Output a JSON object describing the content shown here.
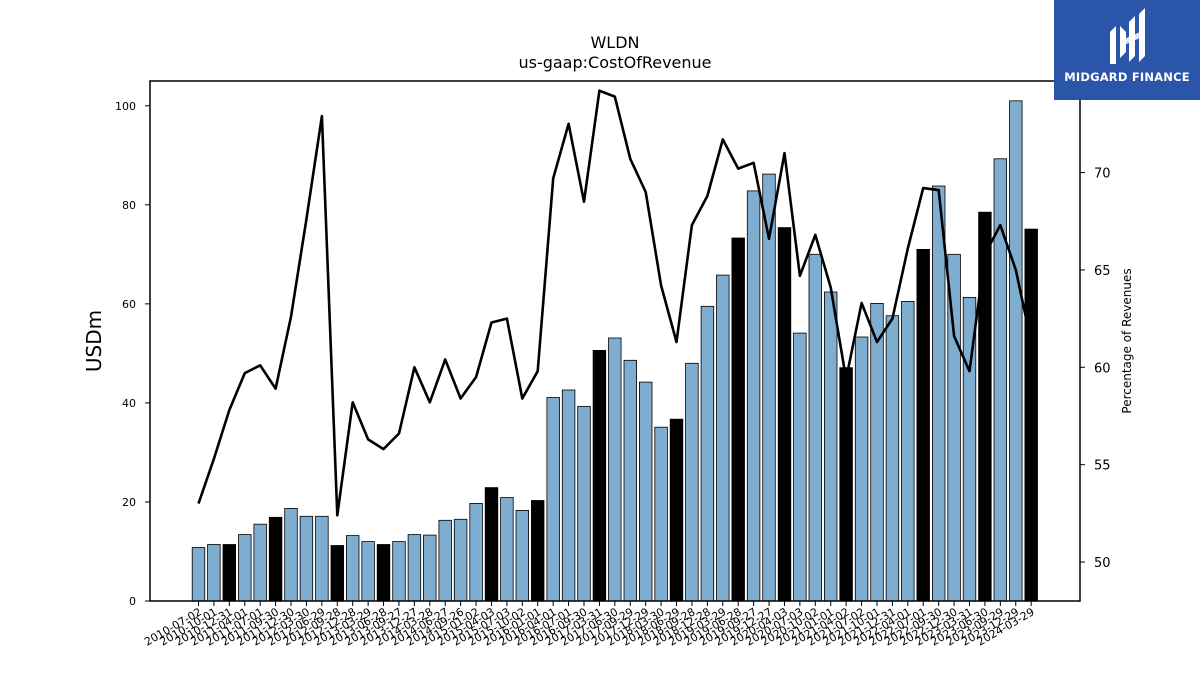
{
  "brand": {
    "name": "MIDGARD FINANCE",
    "bg_color": "#2a55a8"
  },
  "chart_data": {
    "type": "bar",
    "title": "WLDN",
    "subtitle": "us-gaap:CostOfRevenue",
    "ylabel": "USDm",
    "y2label": "Percentage of Revenues",
    "ylim": [
      0,
      105
    ],
    "y2lim": [
      48,
      74.7
    ],
    "yticks": [
      0,
      20,
      40,
      60,
      80,
      100
    ],
    "y2ticks": [
      50,
      55,
      60,
      65,
      70
    ],
    "colors": {
      "bar": "#7fadd0",
      "highlight_bar": "#000000",
      "line": "#000000"
    },
    "categories": [
      "2010-07-02",
      "2010-10-01",
      "2010-12-31",
      "2011-04-01",
      "2011-07-01",
      "2011-09-30",
      "2011-12-30",
      "2012-03-30",
      "2012-06-29",
      "2012-09-28",
      "2012-12-28",
      "2013-03-29",
      "2013-06-28",
      "2013-09-27",
      "2013-12-27",
      "2014-03-28",
      "2014-06-27",
      "2014-09-26",
      "2015-01-02",
      "2015-04-03",
      "2015-07-03",
      "2015-10-02",
      "2016-01-01",
      "2016-04-01",
      "2016-07-01",
      "2016-09-30",
      "2017-03-31",
      "2017-06-30",
      "2017-09-29",
      "2017-12-29",
      "2018-03-30",
      "2018-06-29",
      "2018-09-28",
      "2018-12-28",
      "2019-03-29",
      "2019-06-28",
      "2019-09-27",
      "2019-12-27",
      "2020-04-03",
      "2020-07-03",
      "2020-10-02",
      "2021-01-01",
      "2021-04-02",
      "2021-07-02",
      "2021-10-01",
      "2021-12-31",
      "2022-04-01",
      "2022-07-01",
      "2022-09-30",
      "2022-12-30",
      "2023-03-31",
      "2023-06-30",
      "2023-09-29",
      "2023-12-29",
      "2024-03-29"
    ],
    "series": [
      {
        "kind": "bar",
        "values": [
          10.8,
          11.4,
          11.4,
          13.4,
          15.5,
          16.9,
          18.7,
          17.1,
          17.1,
          11.2,
          13.2,
          12.0,
          11.4,
          12.0,
          13.4,
          13.3,
          16.3,
          16.5,
          19.7,
          22.9,
          20.9,
          18.3,
          20.3,
          41.1,
          42.6,
          39.3,
          50.6,
          53.1,
          48.6,
          44.2,
          35.1,
          36.7,
          48.0,
          59.5,
          65.8,
          73.3,
          82.8,
          86.2,
          75.4,
          54.1,
          70.0,
          62.4,
          47.1,
          53.3,
          60.1,
          57.6,
          60.5,
          71.0,
          83.8,
          70.0,
          61.3,
          78.5,
          89.3,
          101.0,
          75.1
        ],
        "highlight": [
          false,
          false,
          true,
          false,
          false,
          true,
          false,
          false,
          false,
          true,
          false,
          false,
          true,
          false,
          false,
          false,
          false,
          false,
          false,
          true,
          false,
          false,
          true,
          false,
          false,
          false,
          true,
          false,
          false,
          false,
          false,
          true,
          false,
          false,
          false,
          true,
          false,
          false,
          true,
          false,
          false,
          false,
          true,
          false,
          false,
          false,
          false,
          true,
          false,
          false,
          false,
          true,
          false,
          false,
          true
        ]
      },
      {
        "kind": "line",
        "axis": "right",
        "values": [
          53.0,
          55.3,
          57.8,
          59.7,
          60.1,
          58.9,
          62.6,
          67.6,
          72.9,
          52.4,
          58.2,
          56.3,
          55.8,
          56.6,
          60.0,
          58.2,
          60.4,
          58.4,
          59.5,
          62.3,
          62.5,
          58.4,
          59.8,
          69.7,
          72.5,
          68.5,
          74.2,
          73.9,
          70.7,
          69.0,
          64.2,
          61.3,
          67.3,
          68.8,
          71.7,
          70.2,
          70.5,
          66.6,
          71.0,
          64.7,
          66.8,
          64.1,
          59.4,
          63.3,
          61.3,
          62.5,
          66.1,
          69.2,
          69.1,
          61.6,
          59.8,
          65.8,
          67.3,
          65.0,
          61.3
        ]
      }
    ]
  }
}
